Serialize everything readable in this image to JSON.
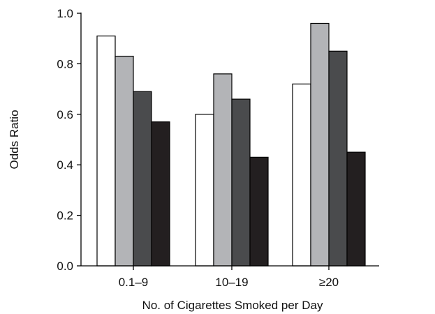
{
  "chart_data": {
    "type": "bar",
    "title": "",
    "xlabel": "No. of Cigarettes Smoked per Day",
    "ylabel": "Odds Ratio",
    "ylim": [
      0,
      1.0
    ],
    "yticks": [
      "0.0",
      "0.2",
      "0.4",
      "0.6",
      "0.8",
      "1.0"
    ],
    "categories": [
      "0.1–9",
      "10–19",
      "≥20"
    ],
    "grid": false,
    "legend": "none",
    "series": [
      {
        "values": [
          0.91,
          0.6,
          0.72
        ],
        "color": "#ffffff"
      },
      {
        "values": [
          0.83,
          0.76,
          0.96
        ],
        "color": "#b3b4b7"
      },
      {
        "values": [
          0.69,
          0.66,
          0.85
        ],
        "color": "#4a4b4d"
      },
      {
        "values": [
          0.57,
          0.43,
          0.45
        ],
        "color": "#231f20"
      }
    ]
  }
}
